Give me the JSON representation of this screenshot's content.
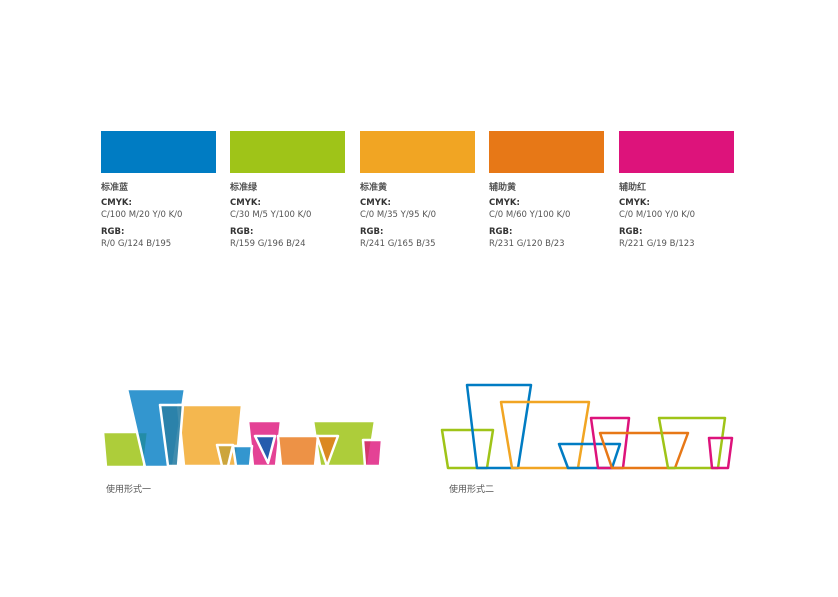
{
  "swatches": [
    {
      "name": "标准蓝",
      "cmyk_label": "CMYK:",
      "cmyk": "C/100  M/20  Y/0  K/0",
      "rgb_label": "RGB:",
      "rgb": "R/0  G/124  B/195",
      "color": "#007cc3"
    },
    {
      "name": "标准绿",
      "cmyk_label": "CMYK:",
      "cmyk": "C/30  M/5  Y/100  K/0",
      "rgb_label": "RGB:",
      "rgb": "R/159  G/196  B/24",
      "color": "#9fc418"
    },
    {
      "name": "标准黄",
      "cmyk_label": "CMYK:",
      "cmyk": "C/0  M/35  Y/95  K/0",
      "rgb_label": "RGB:",
      "rgb": "R/241  G/165  B/35",
      "color": "#f1a523"
    },
    {
      "name": "辅助黄",
      "cmyk_label": "CMYK:",
      "cmyk": "C/0  M/60  Y/100  K/0",
      "rgb_label": "RGB:",
      "rgb": "R/231  G/120  B/23",
      "color": "#e77817"
    },
    {
      "name": "辅助红",
      "cmyk_label": "CMYK:",
      "cmyk": "C/0  M/100  Y/0  K/0",
      "rgb_label": "RGB:",
      "rgb": "R/221  G/19  B/123",
      "color": "#dd137b"
    }
  ],
  "usage": {
    "form1": "使用形式一",
    "form2": "使用形式二"
  }
}
